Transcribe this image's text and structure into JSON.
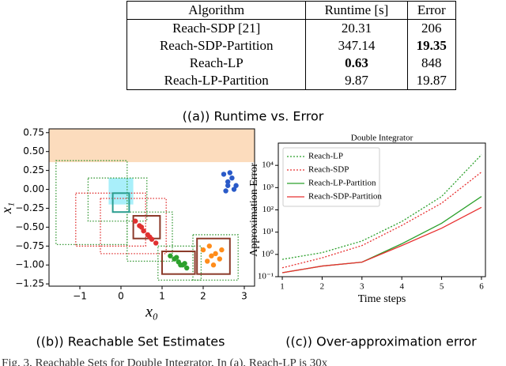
{
  "table": {
    "header": [
      "Algorithm",
      "Runtime [s]",
      "Error"
    ],
    "rows": [
      [
        "Reach-SDP [21]",
        "20.31",
        "206"
      ],
      [
        "Reach-SDP-Partition",
        "347.14",
        "19.35"
      ],
      [
        "Reach-LP",
        "0.63",
        "848"
      ],
      [
        "Reach-LP-Partition",
        "9.87",
        "19.87"
      ]
    ]
  },
  "captions": [
    "((a)) Runtime vs. Error",
    "((b)) Reachable Set Estimates",
    "((c)) Over-approximation error"
  ],
  "figure_caption": "Fig. 3.   Reachable Sets for Double Integrator.  In (a), Reach-LP is 30x",
  "chart_data": [
    {
      "type": "scatter",
      "xlabel": "x₀",
      "ylabel": "x₁",
      "xlim": [
        -1.75,
        3.25
      ],
      "ylim": [
        -1.28,
        0.8
      ],
      "xticks": [
        {
          "value": -1,
          "label": "−1"
        },
        0,
        1,
        2,
        3
      ],
      "yticks": [
        {
          "value": 0.75,
          "label": "0.75"
        },
        {
          "value": 0.5,
          "label": "0.50"
        },
        {
          "value": 0.25,
          "label": "0.25"
        },
        {
          "value": 0,
          "label": "0.00"
        },
        {
          "value": -0.25,
          "label": "−0.25"
        },
        {
          "value": -0.5,
          "label": "−0.50"
        },
        {
          "value": -0.75,
          "label": "−0.75"
        },
        {
          "value": -1,
          "label": "−1.00"
        },
        {
          "value": -1.25,
          "label": "−1.25"
        }
      ],
      "boxes": [
        {
          "bounds": [
            -1.75,
            3.25,
            0.36,
            0.8
          ],
          "fill": "#fcdcbd",
          "color": "none",
          "style": "solid"
        },
        {
          "bounds": [
            -0.3,
            0.3,
            -0.2,
            0.15
          ],
          "fill": "#a9effa",
          "color": "none",
          "style": "solid"
        },
        {
          "bounds": [
            -1.58,
            0.15,
            -0.73,
            0.38
          ],
          "fill": "none",
          "color": "#3a9a3a",
          "style": "dotted"
        },
        {
          "bounds": [
            -0.8,
            0.63,
            -0.42,
            0.15
          ],
          "fill": "none",
          "color": "#3a9a3a",
          "style": "dotted"
        },
        {
          "bounds": [
            -1.1,
            0.6,
            -0.75,
            -0.05
          ],
          "fill": "none",
          "color": "#e03030",
          "style": "dotted"
        },
        {
          "bounds": [
            -0.5,
            1.1,
            -0.85,
            -0.12
          ],
          "fill": "none",
          "color": "#e03030",
          "style": "dotted"
        },
        {
          "bounds": [
            0.15,
            1.25,
            -0.95,
            -0.3
          ],
          "fill": "none",
          "color": "#3a9a3a",
          "style": "dotted"
        },
        {
          "bounds": [
            0.9,
            1.95,
            -1.2,
            -0.75
          ],
          "fill": "none",
          "color": "#3a9a3a",
          "style": "dotted"
        },
        {
          "bounds": [
            1.75,
            2.85,
            -1.2,
            -0.6
          ],
          "fill": "none",
          "color": "#3a9a3a",
          "style": "dotted"
        },
        {
          "bounds": [
            -0.2,
            0.2,
            -0.3,
            -0.05
          ],
          "fill": "none",
          "color": "#2a9d8f",
          "style": "solid"
        },
        {
          "bounds": [
            0.3,
            0.95,
            -0.65,
            -0.35
          ],
          "fill": "none",
          "color": "#8b3a2a",
          "style": "solid"
        },
        {
          "bounds": [
            1.0,
            1.8,
            -1.12,
            -0.82
          ],
          "fill": "none",
          "color": "#8b3a2a",
          "style": "solid"
        },
        {
          "bounds": [
            1.85,
            2.65,
            -1.12,
            -0.65
          ],
          "fill": "none",
          "color": "#8b3a2a",
          "style": "solid"
        }
      ],
      "clouds": [
        {
          "color": "#e03030",
          "x": [
            0.35,
            0.45,
            0.55,
            0.65,
            0.75,
            0.85,
            0.5,
            0.7
          ],
          "y": [
            -0.42,
            -0.48,
            -0.55,
            -0.6,
            -0.66,
            -0.71,
            -0.5,
            -0.63
          ]
        },
        {
          "color": "#2ca02c",
          "x": [
            1.2,
            1.3,
            1.4,
            1.5,
            1.6,
            1.35,
            1.45,
            1.55
          ],
          "y": [
            -0.88,
            -0.92,
            -0.96,
            -1.0,
            -1.04,
            -0.9,
            -1.0,
            -0.98
          ]
        },
        {
          "color": "#ff8c1a",
          "x": [
            2.0,
            2.15,
            2.3,
            2.45,
            2.1,
            2.25,
            2.4,
            2.2
          ],
          "y": [
            -0.8,
            -0.75,
            -0.85,
            -0.8,
            -0.95,
            -1.0,
            -0.92,
            -0.88
          ]
        },
        {
          "color": "#2a5ac8",
          "x": [
            2.5,
            2.6,
            2.7,
            2.8,
            2.55,
            2.75,
            2.65,
            2.6
          ],
          "y": [
            0.2,
            0.1,
            0.15,
            0.05,
            -0.02,
            0.0,
            0.22,
            0.05
          ]
        }
      ]
    },
    {
      "type": "line",
      "title": "Double Integrator",
      "xlabel": "Time steps",
      "ylabel": "Approximation Error",
      "log_y": true,
      "legend": "upper-left",
      "x": [
        1,
        2,
        3,
        4,
        5,
        6
      ],
      "xlim": [
        0.9,
        6.1
      ],
      "xticks": [
        1,
        2,
        3,
        4,
        5,
        6
      ],
      "ylim": [
        0.1,
        100000
      ],
      "yticks": [
        {
          "value": 0.1,
          "label": "10⁻¹"
        },
        {
          "value": 1,
          "label": "10⁰"
        },
        {
          "value": 10,
          "label": "10¹"
        },
        {
          "value": 100,
          "label": "10²"
        },
        {
          "value": 1000,
          "label": "10³"
        },
        {
          "value": 10000,
          "label": "10⁴"
        }
      ],
      "series": [
        {
          "name": "Reach-LP",
          "color": "#2ca02c",
          "style": "dotted",
          "values": [
            0.6,
            1.2,
            4,
            30,
            400,
            30000
          ]
        },
        {
          "name": "Reach-SDP",
          "color": "#e83030",
          "style": "dotted",
          "values": [
            0.25,
            0.7,
            2.5,
            20,
            200,
            5000
          ]
        },
        {
          "name": "Reach-LP-Partition",
          "color": "#2ca02c",
          "style": "solid",
          "values": [
            0.15,
            0.3,
            0.45,
            3,
            25,
            400
          ]
        },
        {
          "name": "Reach-SDP-Partition",
          "color": "#e83030",
          "style": "solid",
          "values": [
            0.15,
            0.3,
            0.45,
            2.5,
            15,
            130
          ]
        }
      ]
    }
  ]
}
